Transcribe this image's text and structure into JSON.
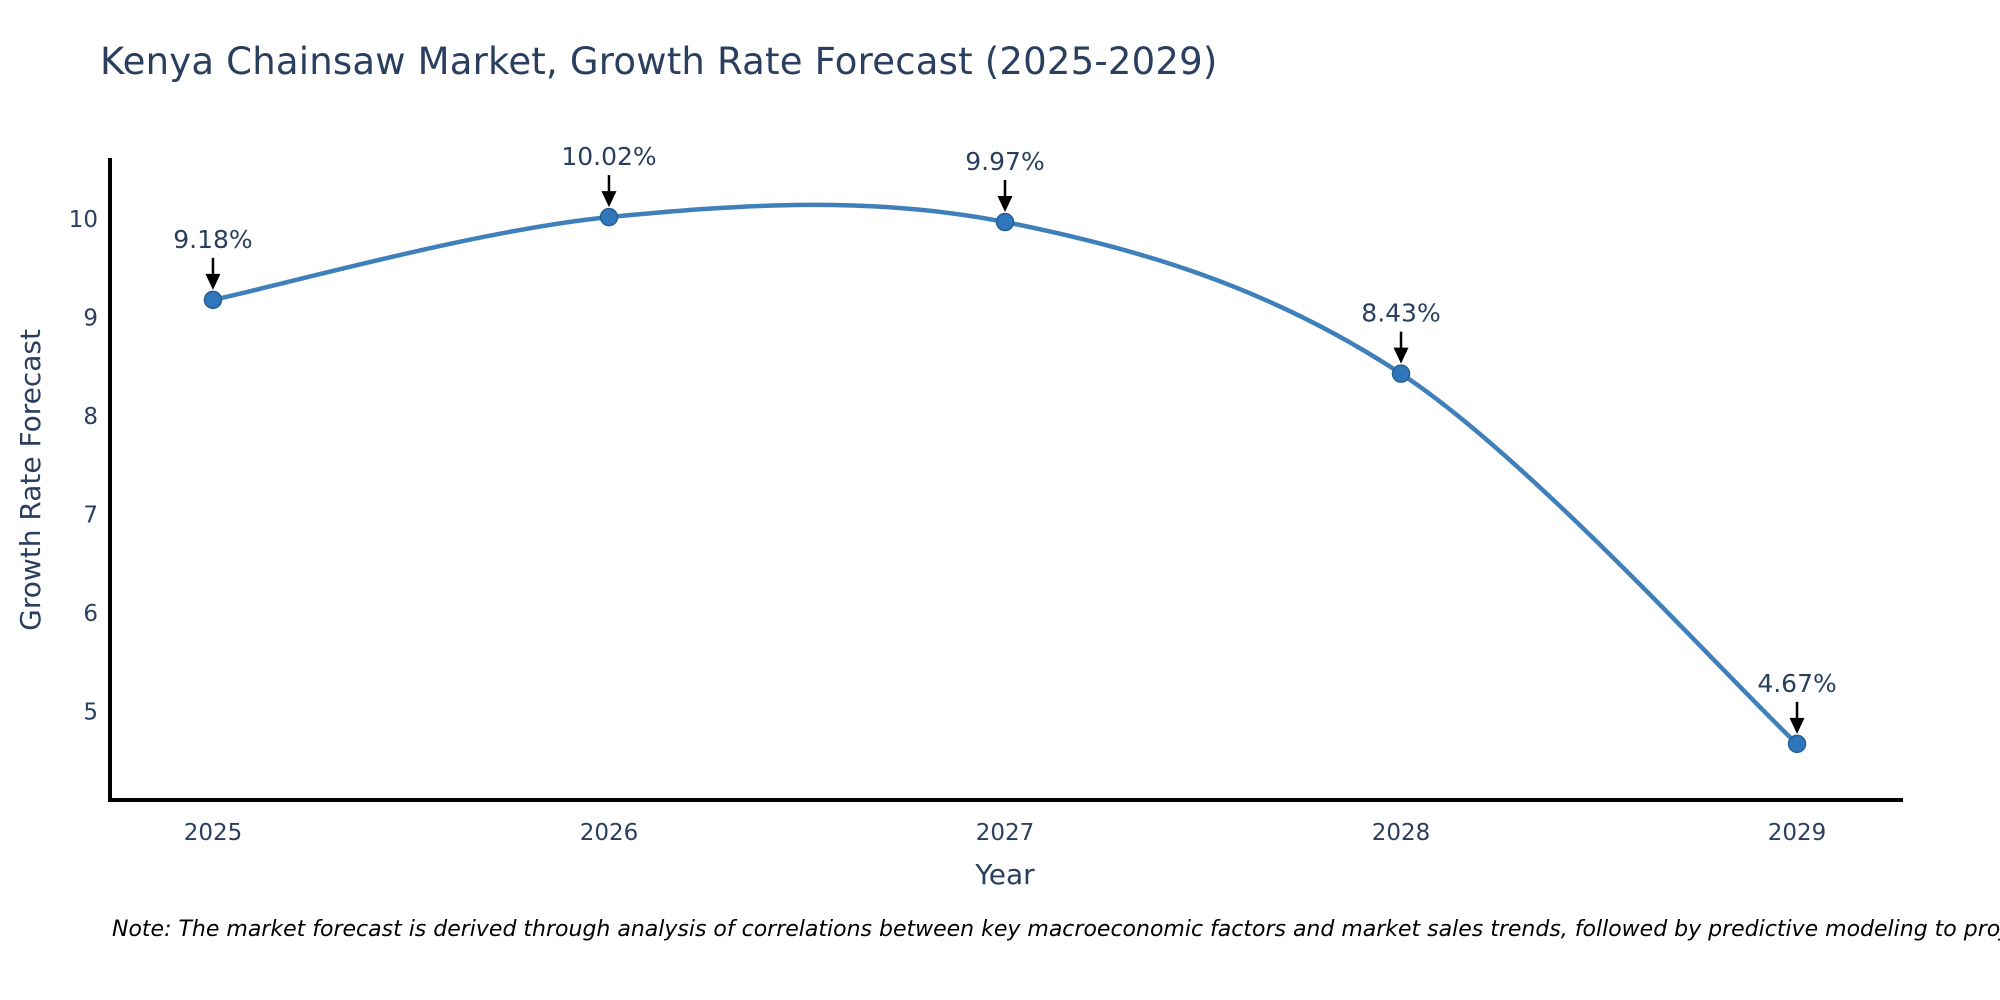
{
  "chart_data": {
    "type": "line",
    "title": "Kenya Chainsaw Market, Growth Rate Forecast (2025-2029)",
    "xlabel": "Year",
    "ylabel": "Growth Rate Forecast",
    "x": [
      2025,
      2026,
      2027,
      2028,
      2029
    ],
    "series": [
      {
        "name": "Growth Rate Forecast",
        "values": [
          9.18,
          10.02,
          9.97,
          8.43,
          4.67
        ]
      }
    ],
    "point_labels": [
      "9.18%",
      "10.02%",
      "9.97%",
      "8.43%",
      "4.67%"
    ],
    "yticks": [
      10,
      9,
      8,
      7,
      6,
      5
    ],
    "ylim": [
      4.1,
      10.6
    ],
    "xlim": [
      2024.74,
      2029.26
    ],
    "line_shape": "spline",
    "grid": false,
    "legend": "none",
    "colors": {
      "line": "#3f80bb",
      "marker": "#3076bb",
      "marker_edge": "#265f96",
      "axis": "#000000",
      "text": "#2a3f5f",
      "arrow": "#000000",
      "note_text": "#000000",
      "background": "#ffffff"
    }
  },
  "note": "Note: The market forecast is derived through analysis of correlations between key macroeconomic factors and market sales trends, followed by predictive modeling to project future sales"
}
